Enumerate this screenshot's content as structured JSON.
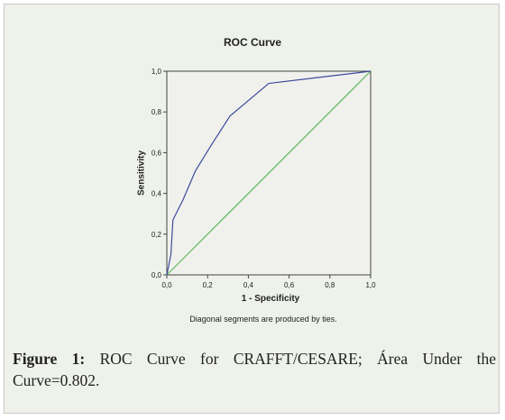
{
  "chart_data": {
    "type": "line",
    "title": "ROC Curve",
    "xlabel": "1 - Specificity",
    "ylabel": "Sensitivity",
    "xlim": [
      0.0,
      1.0
    ],
    "ylim": [
      0.0,
      1.0
    ],
    "x_ticks": [
      "0,0",
      "0,2",
      "0,4",
      "0,6",
      "0,8",
      "1,0"
    ],
    "y_ticks": [
      "0,0",
      "0,2",
      "0,4",
      "0,6",
      "0,8",
      "1,0"
    ],
    "series": [
      {
        "color": "#3d4a9c",
        "points": [
          [
            0.0,
            0.0
          ],
          [
            0.02,
            0.1
          ],
          [
            0.03,
            0.27
          ],
          [
            0.08,
            0.37
          ],
          [
            0.14,
            0.51
          ],
          [
            0.22,
            0.64
          ],
          [
            0.31,
            0.78
          ],
          [
            0.5,
            0.94
          ],
          [
            0.75,
            0.97
          ],
          [
            1.0,
            1.0
          ]
        ]
      },
      {
        "color": "#5cb85c",
        "points": [
          [
            0.0,
            0.0
          ],
          [
            1.0,
            1.0
          ]
        ]
      }
    ],
    "annotation": "Diagonal segments are produced by ties."
  },
  "caption": {
    "label": "Figure 1:",
    "text": "ROC Curve for CRAFFT/CESARE; Área Under the Curve=0.802."
  },
  "colors": {
    "plot_background": "#f0f1ec",
    "figure_background": "#eef2ea"
  }
}
